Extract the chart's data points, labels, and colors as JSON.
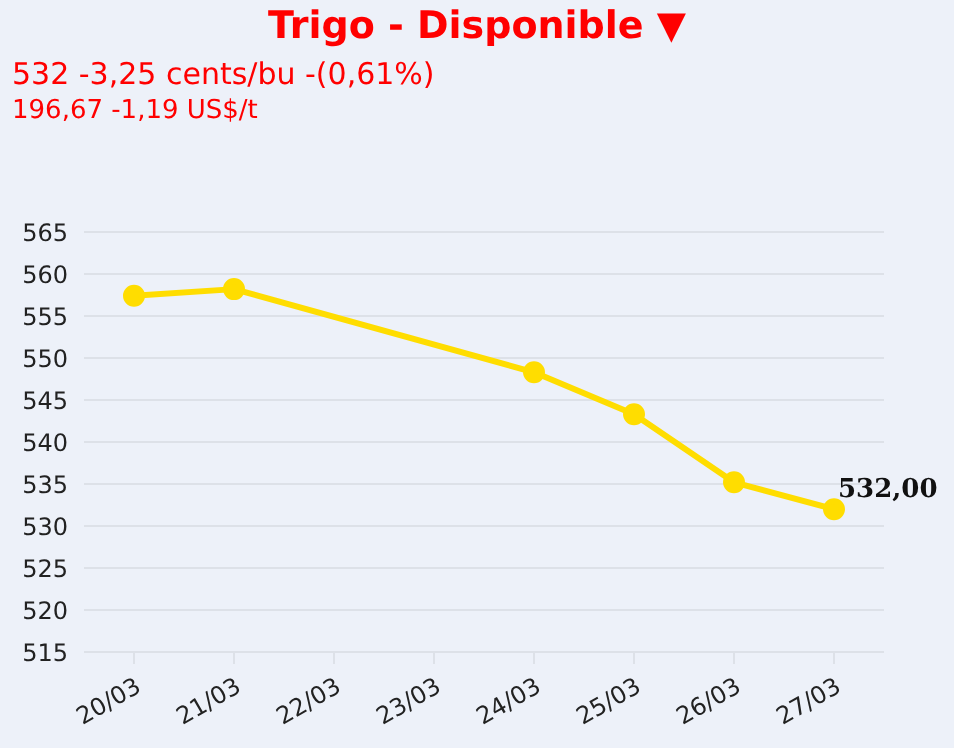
{
  "chart_data": {
    "type": "line",
    "title": "Trigo - Disponible ▼",
    "subtitle": "532 -3,25 cents/bu -(0,61%)",
    "annotations": [
      "196,67 -1,19 US$/t"
    ],
    "categories": [
      "20/03",
      "21/03",
      "22/03",
      "23/03",
      "24/03",
      "25/03",
      "26/03",
      "27/03"
    ],
    "series": [
      {
        "color": "#ffdd00",
        "values": [
          557.4,
          558.2,
          null,
          null,
          548.3,
          543.3,
          535.2,
          532.0
        ],
        "value_labels": [
          null,
          null,
          null,
          null,
          null,
          null,
          null,
          "532,00"
        ]
      }
    ],
    "ylim": [
      515,
      565
    ],
    "yticks": [
      515,
      520,
      525,
      530,
      535,
      540,
      545,
      550,
      555,
      560,
      565
    ],
    "grid": "y",
    "marker": "circle",
    "line_style": "solid"
  }
}
